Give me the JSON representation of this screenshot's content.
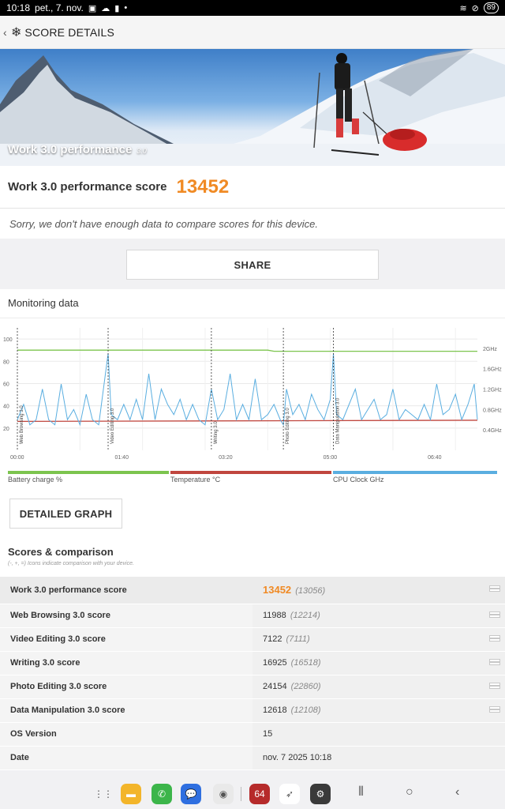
{
  "status_bar": {
    "time": "10:18",
    "date": "pet., 7. nov.",
    "battery": "89"
  },
  "app_bar": {
    "title": "SCORE DETAILS"
  },
  "hero": {
    "title": "Work 3.0 performance",
    "version": "3.0"
  },
  "score": {
    "label": "Work 3.0 performance score",
    "value": "13452"
  },
  "notice": "Sorry, we don't have enough data to compare scores for this device.",
  "share_label": "SHARE",
  "monitoring": {
    "title": "Monitoring data",
    "legend": [
      {
        "label": "Battery charge %",
        "color": "#7cc44e"
      },
      {
        "label": "Temperature °C",
        "color": "#c0463e"
      },
      {
        "label": "CPU Clock GHz",
        "color": "#5aaee0"
      }
    ],
    "detailed_graph_label": "DETAILED GRAPH"
  },
  "chart_data": {
    "type": "line",
    "x_ticks": [
      "00:00",
      "01:40",
      "03:20",
      "05:00",
      "06:40"
    ],
    "y_left_ticks": [
      "100",
      "80",
      "60",
      "40",
      "20"
    ],
    "y_right_ticks": [
      "2GHz",
      "1.6GHz",
      "1.2GHz",
      "0.8GHz",
      "0.4GHz"
    ],
    "section_markers": [
      "Web Browsing 3.0",
      "Video Editing 3.0",
      "Writing 3.0",
      "Photo Editing 3.0",
      "Data Manipulation 3.0"
    ],
    "section_starts": [
      0,
      1.45,
      3.1,
      4.25,
      5.05
    ],
    "xlim": [
      0,
      7.35
    ],
    "ylim_left": [
      0,
      110
    ],
    "ylim_right": [
      0,
      2.4
    ],
    "series": [
      {
        "name": "Battery charge %",
        "x": [
          0,
          0.05,
          4.0,
          4.1,
          7.35
        ],
        "y": [
          90,
          90,
          90,
          89,
          89
        ]
      },
      {
        "name": "Temperature °C",
        "x": [
          0,
          0.05,
          7.35
        ],
        "y": [
          26,
          26,
          27
        ]
      },
      {
        "name": "CPU Clock GHz",
        "x": [
          0,
          0.1,
          0.2,
          0.3,
          0.4,
          0.5,
          0.6,
          0.7,
          0.8,
          0.9,
          1.0,
          1.1,
          1.2,
          1.3,
          1.45,
          1.5,
          1.6,
          1.7,
          1.8,
          1.9,
          2.0,
          2.1,
          2.2,
          2.3,
          2.4,
          2.5,
          2.6,
          2.7,
          2.8,
          2.9,
          3.0,
          3.1,
          3.2,
          3.3,
          3.4,
          3.5,
          3.6,
          3.7,
          3.8,
          3.9,
          4.0,
          4.1,
          4.2,
          4.25,
          4.3,
          4.4,
          4.5,
          4.6,
          4.7,
          4.8,
          4.9,
          5.0,
          5.05,
          5.1,
          5.2,
          5.3,
          5.4,
          5.5,
          5.6,
          5.7,
          5.8,
          5.9,
          6.0,
          6.1,
          6.2,
          6.3,
          6.4,
          6.5,
          6.6,
          6.7,
          6.8,
          6.9,
          7.0,
          7.1,
          7.2,
          7.3,
          7.35
        ],
        "y": [
          0.6,
          0.9,
          0.5,
          0.6,
          1.2,
          0.6,
          0.5,
          1.3,
          0.6,
          0.8,
          0.5,
          1.1,
          0.6,
          0.5,
          1.9,
          0.7,
          0.6,
          0.9,
          0.6,
          1.0,
          0.6,
          1.5,
          0.6,
          1.2,
          0.9,
          0.7,
          1.0,
          0.6,
          0.9,
          0.6,
          0.5,
          1.2,
          0.6,
          0.8,
          1.5,
          0.6,
          0.9,
          0.6,
          1.4,
          0.6,
          0.7,
          0.9,
          0.6,
          0.5,
          1.2,
          0.7,
          0.9,
          0.6,
          1.1,
          0.8,
          0.6,
          1.0,
          1.9,
          0.7,
          0.6,
          0.9,
          1.2,
          0.6,
          0.8,
          1.0,
          0.6,
          0.7,
          1.2,
          0.6,
          0.8,
          0.7,
          0.6,
          0.9,
          0.6,
          1.3,
          0.7,
          0.8,
          1.1,
          0.6,
          0.9,
          1.3,
          0.6
        ]
      }
    ]
  },
  "scores_section": {
    "title": "Scores & comparison",
    "note": "(-, +, =) Icons indicate comparison with your device.",
    "rows": [
      {
        "label": "Work 3.0 performance score",
        "value": "13452",
        "compare": "(13056)",
        "menu": true
      },
      {
        "label": "Web Browsing 3.0 score",
        "value": "11988",
        "compare": "(12214)",
        "menu": true
      },
      {
        "label": "Video Editing 3.0 score",
        "value": "7122",
        "compare": "(7111)",
        "menu": true
      },
      {
        "label": "Writing 3.0 score",
        "value": "16925",
        "compare": "(16518)",
        "menu": true
      },
      {
        "label": "Photo Editing 3.0 score",
        "value": "24154",
        "compare": "(22860)",
        "menu": true
      },
      {
        "label": "Data Manipulation 3.0 score",
        "value": "12618",
        "compare": "(12108)",
        "menu": true
      },
      {
        "label": "OS Version",
        "value": "15",
        "compare": "",
        "menu": false
      },
      {
        "label": "Date",
        "value": "nov. 7 2025 10:18",
        "compare": "",
        "menu": false
      }
    ]
  },
  "nav_bar": {
    "apps": [
      {
        "name": "apps-grid-icon",
        "color": "#f1f1f3",
        "glyph": "⋮⋮"
      },
      {
        "name": "files-app-icon",
        "color": "#f3b52a",
        "glyph": "▬"
      },
      {
        "name": "phone-app-icon",
        "color": "#3cb54a",
        "glyph": "✆"
      },
      {
        "name": "messages-app-icon",
        "color": "#2f6fe0",
        "glyph": "💬"
      },
      {
        "name": "camera-app-icon",
        "color": "#e9e9e9",
        "glyph": "◉"
      },
      {
        "name": "antutu-app-icon",
        "color": "#b62b2b",
        "glyph": "64"
      },
      {
        "name": "swift-app-icon",
        "color": "#ffffff",
        "glyph": "➶"
      },
      {
        "name": "settings-app-icon",
        "color": "#3a3a3a",
        "glyph": "⚙"
      }
    ]
  }
}
